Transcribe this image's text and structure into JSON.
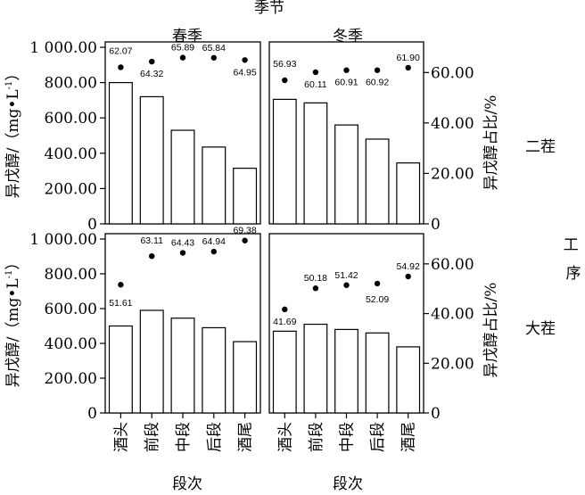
{
  "chart_data": {
    "type": "bar",
    "title": "季节",
    "column_facets": [
      "春季",
      "冬季"
    ],
    "row_facets": [
      "二茬",
      "大茬"
    ],
    "row_facet_title": "工序",
    "categories": [
      "酒头",
      "前段",
      "中段",
      "后段",
      "酒尾"
    ],
    "xlabel": "段次",
    "ylabel_left": "异戊醇/(mg·L⁻¹)",
    "ylabel_left_parts": {
      "main": "异戊醇/（mg•L",
      "sup": "-1",
      "close": "）"
    },
    "ylabel_right": "异戊醇占比/%",
    "ylim_left": [
      0,
      1000
    ],
    "ylim_right": [
      0,
      70
    ],
    "yticks_left": [
      "0",
      "200.00",
      "400.00",
      "600.00",
      "800.00",
      "1 000.00"
    ],
    "yticks_right": [
      "0",
      "20.00",
      "40.00",
      "60.00"
    ],
    "yticks_left_values": [
      0,
      200,
      400,
      600,
      800,
      1000
    ],
    "yticks_right_values": [
      0,
      20,
      40,
      60
    ],
    "panels": [
      {
        "season": "春季",
        "process": "二茬",
        "bars": [
          800,
          720,
          530,
          435,
          315
        ],
        "ratio": [
          62.07,
          64.32,
          65.89,
          65.84,
          64.95
        ],
        "ratio_labels": [
          "62.07",
          "64.32",
          "65.89",
          "65.84",
          "64.95"
        ]
      },
      {
        "season": "冬季",
        "process": "二茬",
        "bars": [
          705,
          685,
          560,
          480,
          345
        ],
        "ratio": [
          56.93,
          60.11,
          60.91,
          60.92,
          61.9
        ],
        "ratio_labels": [
          "56.93",
          "60.11",
          "60.91",
          "60.92",
          "61.90"
        ]
      },
      {
        "season": "春季",
        "process": "大茬",
        "bars": [
          500,
          590,
          545,
          490,
          410
        ],
        "ratio": [
          51.61,
          63.11,
          64.43,
          64.94,
          69.38
        ],
        "ratio_labels": [
          "51.61",
          "63.11",
          "64.43",
          "64.94",
          "69.38"
        ]
      },
      {
        "season": "冬季",
        "process": "大茬",
        "bars": [
          470,
          510,
          480,
          460,
          380
        ],
        "ratio": [
          41.69,
          50.18,
          51.42,
          52.09,
          54.92
        ],
        "ratio_labels": [
          "41.69",
          "50.18",
          "51.42",
          "52.09",
          "54.92"
        ]
      }
    ],
    "colors": {
      "bar_fill": "#ffffff",
      "bar_stroke": "#000000",
      "dot": "#000000"
    }
  }
}
